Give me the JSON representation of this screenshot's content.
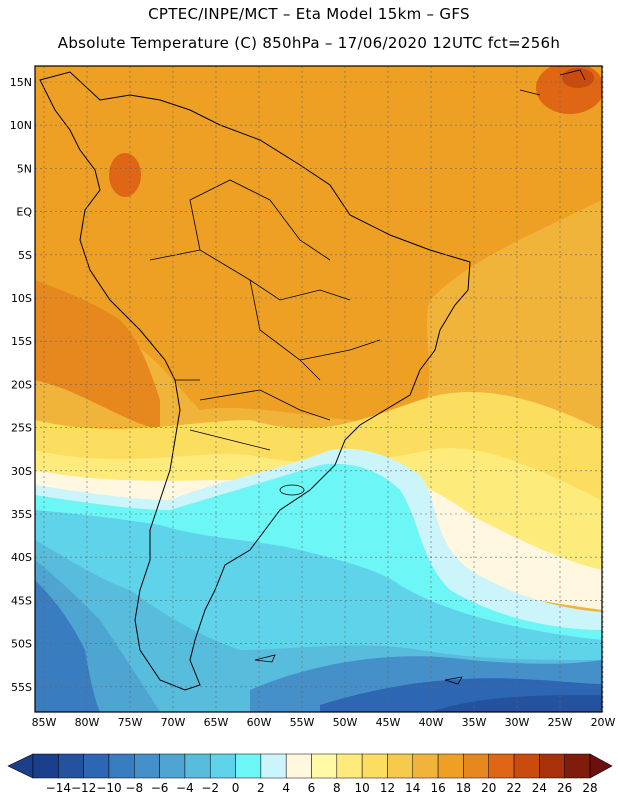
{
  "header": {
    "line1": "CPTEC/INPE/MCT –  Eta Model 15km – GFS",
    "line2": "Absolute Temperature (C) 850hPa – 17/06/2020 12UTC fct=256h"
  },
  "axes": {
    "lat_labels": [
      "15N",
      "10N",
      "5N",
      "EQ",
      "5S",
      "10S",
      "15S",
      "20S",
      "25S",
      "30S",
      "35S",
      "40S",
      "45S",
      "50S",
      "55S"
    ],
    "lon_labels": [
      "85W",
      "80W",
      "75W",
      "70W",
      "65W",
      "60W",
      "55W",
      "50W",
      "45W",
      "40W",
      "35W",
      "30W",
      "25W",
      "20W"
    ]
  },
  "colorbar": {
    "labels": [
      "-14",
      "-12",
      "-10",
      "-8",
      "-6",
      "-4",
      "-2",
      "0",
      "2",
      "4",
      "6",
      "8",
      "10",
      "12",
      "14",
      "16",
      "18",
      "20",
      "22",
      "24",
      "26",
      "28"
    ],
    "colors": [
      "#1c3f8c",
      "#24529f",
      "#2d66b3",
      "#3a7cc0",
      "#4590c8",
      "#4ea5d2",
      "#58bcdd",
      "#5fd3e9",
      "#6cf6f6",
      "#ccf4fb",
      "#fff7e0",
      "#fffaa6",
      "#fdeb7c",
      "#fbdd60",
      "#f5c94b",
      "#f1b43a",
      "#eea024",
      "#e6881d",
      "#de6614",
      "#c94b0e",
      "#a8300b",
      "#7f1d0a"
    ]
  },
  "colors": {
    "land_border": "#000000",
    "grid": "#666666"
  }
}
